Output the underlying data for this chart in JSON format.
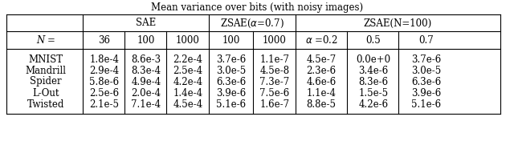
{
  "title": "Mean variance over bits (with noisy images)",
  "header_row1_labels": [
    "SAE",
    "ZSAE(α=0.7)",
    "ZSAE(N=100)"
  ],
  "header_row2": [
    "N =",
    "36",
    "100",
    "1000",
    "100",
    "1000",
    "α =0.2",
    "0.5",
    "0.7"
  ],
  "rows": [
    [
      "MNIST",
      "1.8e-4",
      "8.6e-3",
      "2.2e-4",
      "3.7e-6",
      "1.1e-7",
      "4.5e-7",
      "0.0e+0",
      "3.7e-6"
    ],
    [
      "Mandrill",
      "2.9e-4",
      "8.3e-4",
      "2.5e-4",
      "3.0e-5",
      "4.5e-8",
      "2.3e-6",
      "3.4e-6",
      "3.0e-5"
    ],
    [
      "Spider",
      "5.8e-6",
      "4.9e-4",
      "4.2e-4",
      "6.3e-6",
      "7.3e-7",
      "4.6e-6",
      "8.3e-6",
      "6.3e-6"
    ],
    [
      "L-Out",
      "2.5e-6",
      "2.0e-4",
      "1.4e-4",
      "3.9e-6",
      "7.5e-6",
      "1.1e-4",
      "1.5e-5",
      "3.9e-6"
    ],
    [
      "Twisted",
      "2.1e-5",
      "7.1e-4",
      "4.5e-4",
      "5.1e-6",
      "1.6e-7",
      "8.8e-5",
      "4.2e-6",
      "5.1e-6"
    ]
  ],
  "background_color": "#ffffff",
  "text_color": "#000000",
  "font_size": 8.5,
  "lw": 0.8
}
